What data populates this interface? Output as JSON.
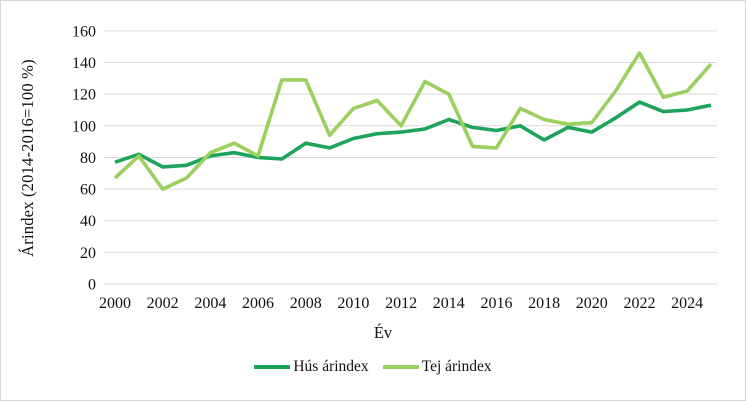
{
  "chart_data": {
    "type": "line",
    "title": "",
    "xlabel": "Év",
    "ylabel": "Árindex (2014-2016=100 %)",
    "x": [
      2000,
      2001,
      2002,
      2003,
      2004,
      2005,
      2006,
      2007,
      2008,
      2009,
      2010,
      2011,
      2012,
      2013,
      2014,
      2015,
      2016,
      2017,
      2018,
      2019,
      2020,
      2021,
      2022,
      2023,
      2024,
      2025
    ],
    "series": [
      {
        "name": "Hús árindex",
        "color": "#1ea45a",
        "values": [
          77,
          82,
          74,
          75,
          81,
          83,
          80,
          79,
          89,
          86,
          92,
          95,
          96,
          98,
          104,
          99,
          97,
          100,
          91,
          99,
          96,
          105,
          115,
          109,
          110,
          113
        ]
      },
      {
        "name": "Tej árindex",
        "color": "#9bd05f",
        "values": [
          67,
          81,
          60,
          67,
          83,
          89,
          81,
          129,
          129,
          94,
          111,
          116,
          100,
          128,
          120,
          87,
          86,
          111,
          104,
          101,
          102,
          122,
          146,
          118,
          122,
          139
        ]
      }
    ],
    "ylim": [
      0,
      160
    ],
    "ytick_step": 20,
    "ytick_labels": [
      "0",
      "20",
      "40",
      "60",
      "80",
      "100",
      "120",
      "140",
      "160"
    ],
    "xtick_labels": [
      "2000",
      "2002",
      "2004",
      "2006",
      "2008",
      "2010",
      "2012",
      "2014",
      "2016",
      "2018",
      "2020",
      "2022",
      "2024"
    ],
    "xtick_step": 2,
    "grid": "horizontal-only",
    "gridline_color": "#d9d9d9",
    "legend_position": "bottom-center"
  }
}
